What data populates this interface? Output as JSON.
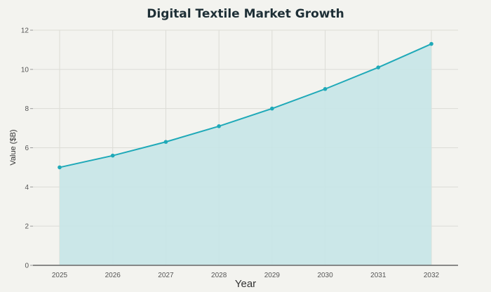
{
  "chart_data": {
    "type": "area",
    "title": "Digital Textile Market Growth",
    "xlabel": "Year",
    "ylabel": "Value ($B)",
    "x": [
      "2025",
      "2026",
      "2027",
      "2028",
      "2029",
      "2030",
      "2031",
      "2032"
    ],
    "series": [
      {
        "values": [
          5.0,
          5.6,
          6.3,
          7.1,
          8.0,
          9.0,
          10.1,
          11.3
        ]
      }
    ],
    "ylim": [
      0,
      12
    ],
    "yticks": [
      0,
      2,
      4,
      6,
      8,
      10,
      12
    ],
    "grid": true,
    "colors": {
      "line": "#1fa9b8",
      "fill": "#c7e6e7",
      "background": "#f3f3ef",
      "grid": "#dcdcd6"
    }
  }
}
